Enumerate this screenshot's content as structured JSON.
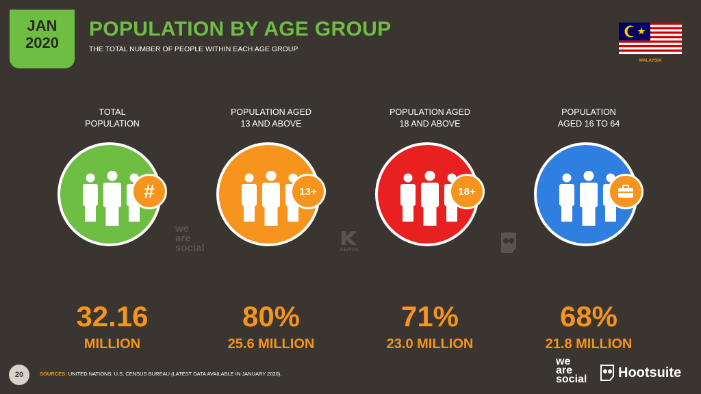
{
  "header": {
    "month": "JAN",
    "year": "2020",
    "title": "POPULATION BY AGE GROUP",
    "subtitle": "THE TOTAL NUMBER OF PEOPLE WITHIN EACH AGE GROUP",
    "country": "MALAYSIA"
  },
  "stats": [
    {
      "label1": "TOTAL",
      "label2": "POPULATION",
      "color": "#6fbe44",
      "badge": "#",
      "badge_icon": "hash-icon",
      "value": "32.16",
      "sub": "MILLION"
    },
    {
      "label1": "POPULATION AGED",
      "label2": "13 AND ABOVE",
      "color": "#f7941d",
      "badge": "13+",
      "badge_icon": "age-13-icon",
      "value": "80%",
      "sub": "25.6 MILLION"
    },
    {
      "label1": "POPULATION AGED",
      "label2": "18 AND ABOVE",
      "color": "#e8201f",
      "badge": "18+",
      "badge_icon": "age-18-icon",
      "value": "71%",
      "sub": "23.0 MILLION"
    },
    {
      "label1": "POPULATION",
      "label2": "AGED 16 TO 64",
      "color": "#2f7fe0",
      "badge": "",
      "badge_icon": "briefcase-icon",
      "value": "68%",
      "sub": "21.8 MILLION"
    }
  ],
  "watermarks": {
    "social": "we are social",
    "kepios": "KEPIOS"
  },
  "footer": {
    "page": "20",
    "sources_label": "SOURCES:",
    "sources_text": "UNITED NATIONS; U.S. CENSUS BUREAU (LATEST DATA AVAILABLE IN JANUARY 2020).",
    "brand_social": "we are social",
    "brand_hootsuite": "Hootsuite"
  },
  "colors": {
    "accent_green": "#6fbe44",
    "accent_orange": "#f7941d",
    "background": "#3a3530"
  }
}
